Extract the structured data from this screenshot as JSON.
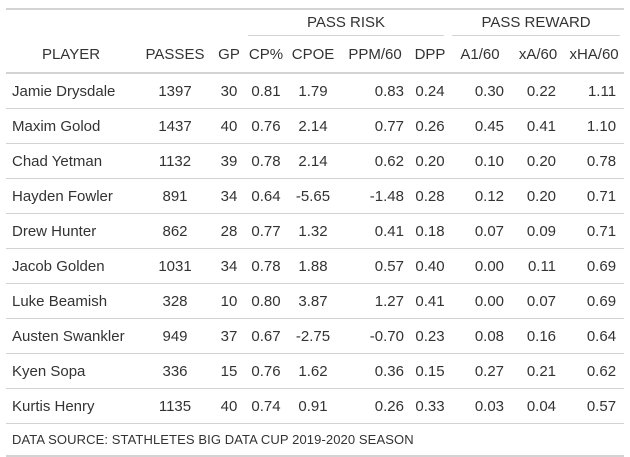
{
  "spanners": {
    "pass_risk": "PASS RISK",
    "pass_reward": "PASS REWARD"
  },
  "columns": [
    "PLAYER",
    "PASSES",
    "GP",
    "CP%",
    "CPOE",
    "PPM/60",
    "DPP",
    "A1/60",
    "xA/60",
    "xHA/60"
  ],
  "rows": [
    [
      "Jamie Drysdale",
      "1397",
      "30",
      "0.81",
      "1.79",
      "0.83",
      "0.24",
      "0.30",
      "0.22",
      "1.11"
    ],
    [
      "Maxim Golod",
      "1437",
      "40",
      "0.76",
      "2.14",
      "0.77",
      "0.26",
      "0.45",
      "0.41",
      "1.10"
    ],
    [
      "Chad Yetman",
      "1132",
      "39",
      "0.78",
      "2.14",
      "0.62",
      "0.20",
      "0.10",
      "0.20",
      "0.78"
    ],
    [
      "Hayden Fowler",
      "891",
      "34",
      "0.64",
      "-5.65",
      "-1.48",
      "0.28",
      "0.12",
      "0.20",
      "0.71"
    ],
    [
      "Drew Hunter",
      "862",
      "28",
      "0.77",
      "1.32",
      "0.41",
      "0.18",
      "0.07",
      "0.09",
      "0.71"
    ],
    [
      "Jacob Golden",
      "1031",
      "34",
      "0.78",
      "1.88",
      "0.57",
      "0.40",
      "0.00",
      "0.11",
      "0.69"
    ],
    [
      "Luke Beamish",
      "328",
      "10",
      "0.80",
      "3.87",
      "1.27",
      "0.41",
      "0.00",
      "0.07",
      "0.69"
    ],
    [
      "Austen Swankler",
      "949",
      "37",
      "0.67",
      "-2.75",
      "-0.70",
      "0.23",
      "0.08",
      "0.16",
      "0.64"
    ],
    [
      "Kyen Sopa",
      "336",
      "15",
      "0.76",
      "1.62",
      "0.36",
      "0.15",
      "0.27",
      "0.21",
      "0.62"
    ],
    [
      "Kurtis Henry",
      "1135",
      "40",
      "0.74",
      "0.91",
      "0.26",
      "0.33",
      "0.03",
      "0.04",
      "0.57"
    ]
  ],
  "source_note": "DATA SOURCE: STATHLETES BIG DATA CUP 2019-2020 SEASON"
}
